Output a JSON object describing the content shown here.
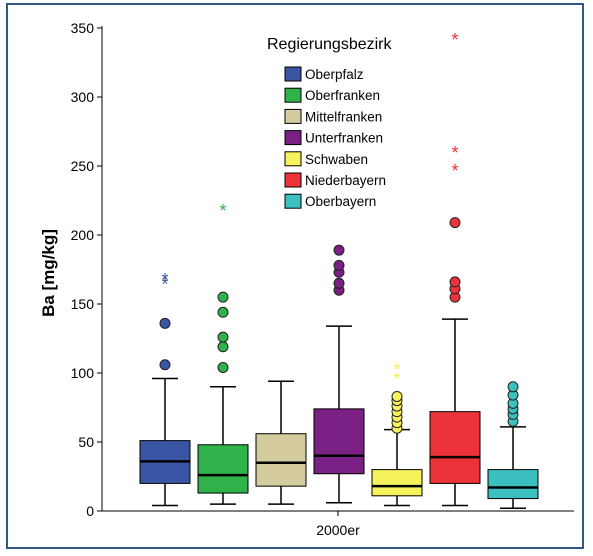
{
  "chart_data": {
    "type": "boxplot",
    "title": "",
    "ylabel": "Ba [mg/kg]",
    "xlabel": "",
    "categories": [
      "2000er"
    ],
    "ylim": [
      0,
      350
    ],
    "yticks": [
      0,
      50,
      100,
      150,
      200,
      250,
      300,
      350
    ],
    "grid": false,
    "legend_title": "Regierungsbezirk",
    "legend_position": "top-right",
    "series": [
      {
        "name": "Oberpfalz",
        "color": "#3a55a4",
        "marker_color": "#3a55a4",
        "min": 4,
        "q1": 20,
        "median": 36,
        "q3": 51,
        "max": 96,
        "outliers": [
          106,
          136
        ],
        "extremes": [
          165,
          168
        ]
      },
      {
        "name": "Oberfranken",
        "color": "#2fb24a",
        "marker_color": "#2fb24a",
        "min": 5,
        "q1": 13,
        "median": 26,
        "q3": 48,
        "max": 90,
        "outliers": [
          104,
          119,
          126,
          144,
          155
        ],
        "extremes": [
          218
        ]
      },
      {
        "name": "Mittelfranken",
        "color": "#d4cc9e",
        "marker_color": "#d4cc9e",
        "min": 5,
        "q1": 18,
        "median": 35,
        "q3": 56,
        "max": 94,
        "outliers": [],
        "extremes": []
      },
      {
        "name": "Unterfranken",
        "color": "#7a1f83",
        "marker_color": "#7a1f83",
        "min": 6,
        "q1": 27,
        "median": 40,
        "q3": 74,
        "max": 134,
        "outliers": [
          160,
          165,
          173,
          178,
          189
        ],
        "extremes": []
      },
      {
        "name": "Schwaben",
        "color": "#f6f25c",
        "marker_color": "#f6f25c",
        "min": 4,
        "q1": 11,
        "median": 18,
        "q3": 30,
        "max": 59,
        "outliers": [
          60,
          64,
          68,
          72,
          76,
          80,
          83
        ],
        "extremes": [
          96,
          103
        ]
      },
      {
        "name": "Niederbayern",
        "color": "#ec3339",
        "marker_color": "#ec3339",
        "min": 4,
        "q1": 20,
        "median": 39,
        "q3": 72,
        "max": 139,
        "outliers": [
          155,
          161,
          166,
          209
        ],
        "extremes": [
          247,
          260,
          342
        ]
      },
      {
        "name": "Oberbayern",
        "color": "#3bbfbf",
        "marker_color": "#3bbfbf",
        "min": 2,
        "q1": 9,
        "median": 17,
        "q3": 30,
        "max": 61,
        "outliers": [
          65,
          70,
          74,
          78,
          84,
          90
        ],
        "extremes": []
      }
    ]
  }
}
